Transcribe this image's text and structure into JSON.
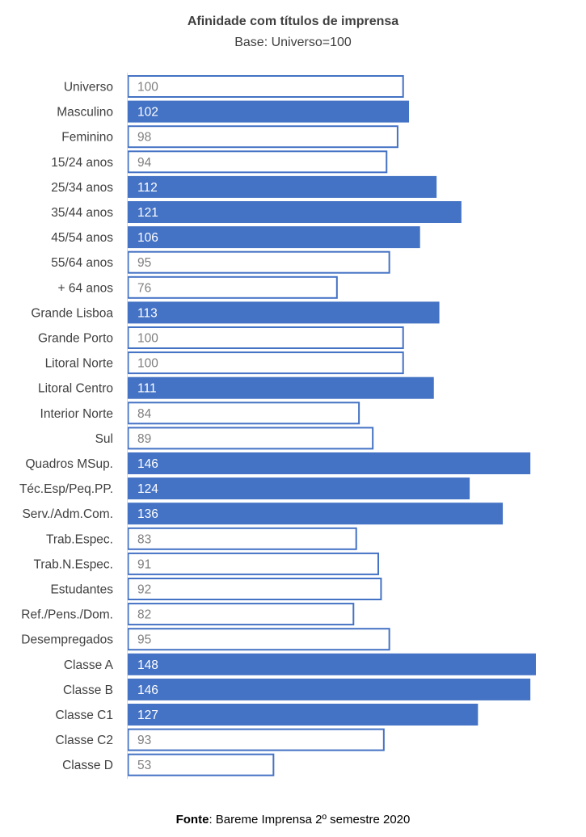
{
  "chart_data": {
    "type": "bar",
    "orientation": "horizontal",
    "title": "Afinidade com títulos de imprensa",
    "subtitle": "Base: Universo=100",
    "baseline": 100,
    "categories": [
      "Universo",
      "Masculino",
      "Feminino",
      "15/24 anos",
      "25/34 anos",
      "35/44 anos",
      "45/54 anos",
      "55/64 anos",
      "+ 64 anos",
      "Grande Lisboa",
      "Grande Porto",
      "Litoral Norte",
      "Litoral Centro",
      "Interior Norte",
      "Sul",
      "Quadros MSup.",
      "Téc.Esp/Peq.PP.",
      "Serv./Adm.Com.",
      "Trab.Espec.",
      "Trab.N.Espec.",
      "Estudantes",
      "Ref./Pens./Dom.",
      "Desempregados",
      "Classe A",
      "Classe B",
      "Classe C1",
      "Classe C2",
      "Classe D"
    ],
    "values": [
      100,
      102,
      98,
      94,
      112,
      121,
      106,
      95,
      76,
      113,
      100,
      100,
      111,
      84,
      89,
      146,
      124,
      136,
      83,
      91,
      92,
      82,
      95,
      148,
      146,
      127,
      93,
      53
    ],
    "fill_color": "#4472C4",
    "outline_color": "#4472C4",
    "label_on_fill_color": "#ffffff",
    "label_on_outline_color": "#7f7f7f",
    "xlabel": "",
    "ylabel": ""
  },
  "footer": {
    "source_label": "Fonte",
    "source_text": ": Bareme Imprensa 2º semestre 2020"
  }
}
